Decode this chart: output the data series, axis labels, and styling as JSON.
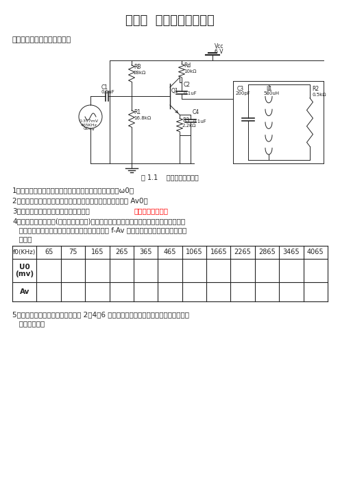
{
  "title": "实验一  高频小信号放大器",
  "subtitle": "一、单调谐高频小信号放大器",
  "fig_caption": "图 1.1    高频小信号放大器",
  "bg_color": "#ffffff",
  "text_color": "#000000",
  "table_headers": [
    "f0(KHz)",
    "65",
    "75",
    "165",
    "265",
    "365",
    "465",
    "1065",
    "1665",
    "2265",
    "2865",
    "3465",
    "4065"
  ],
  "step1": "1、根据电路中选频网络参数值，计算该电路的谐振频率ω0。",
  "step2": "2、通过仿真，观察示波器中的输入输出波形，计算电压增益 Av0。",
  "step3_black": "3、利用软件中的波特图仪观察通频带，",
  "step3_red": "非计算矩形系数。",
  "step4_line1": "4、改变信号源的频率(信号源幅值不变)，通过示波器或着万用表测量输出电压的有效值，",
  "step4_line2": "   计算出输出电压的振幅值，完成下列表，并汇出 f-Av 相应的图，根据图粗略计算出通",
  "step4_line3": "   频带。",
  "step5_line1": "5、在电路的输入端加入谐振频率的 2、4、6 次谐波，通过示波器观察图形，体会该电路",
  "step5_line2": "   的选频作用。"
}
